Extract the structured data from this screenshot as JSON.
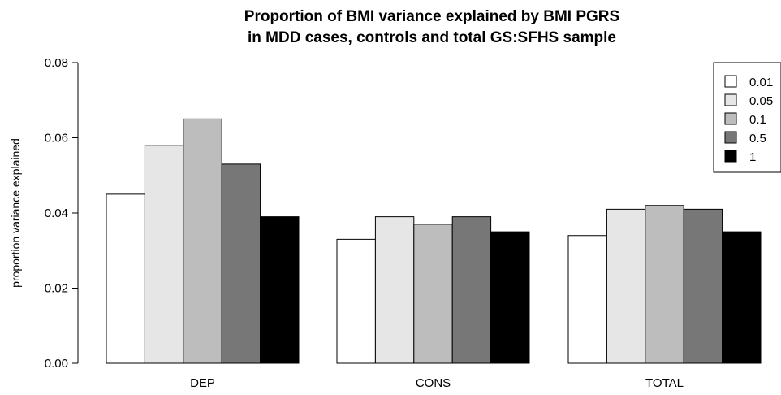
{
  "chart_data": {
    "type": "bar",
    "title": [
      "Proportion of BMI variance explained by BMI PGRS",
      "in MDD cases, controls and total GS:SFHS sample"
    ],
    "xlabel": "",
    "ylabel": "proportion variance explained",
    "ylim": [
      0,
      0.08
    ],
    "yticks": [
      "0.00",
      "0.02",
      "0.04",
      "0.06",
      "0.08"
    ],
    "categories": [
      "DEP",
      "CONS",
      "TOTAL"
    ],
    "series": [
      {
        "name": "0.01",
        "color": "#ffffff",
        "values": [
          0.045,
          0.033,
          0.034
        ]
      },
      {
        "name": "0.05",
        "color": "#e6e6e6",
        "values": [
          0.058,
          0.039,
          0.041
        ]
      },
      {
        "name": "0.1",
        "color": "#bdbdbd",
        "values": [
          0.065,
          0.037,
          0.042
        ]
      },
      {
        "name": "0.5",
        "color": "#777777",
        "values": [
          0.053,
          0.039,
          0.041
        ]
      },
      {
        "name": "1",
        "color": "#000000",
        "values": [
          0.039,
          0.035,
          0.035
        ]
      }
    ],
    "grid": false,
    "legend_position": "top-right"
  }
}
